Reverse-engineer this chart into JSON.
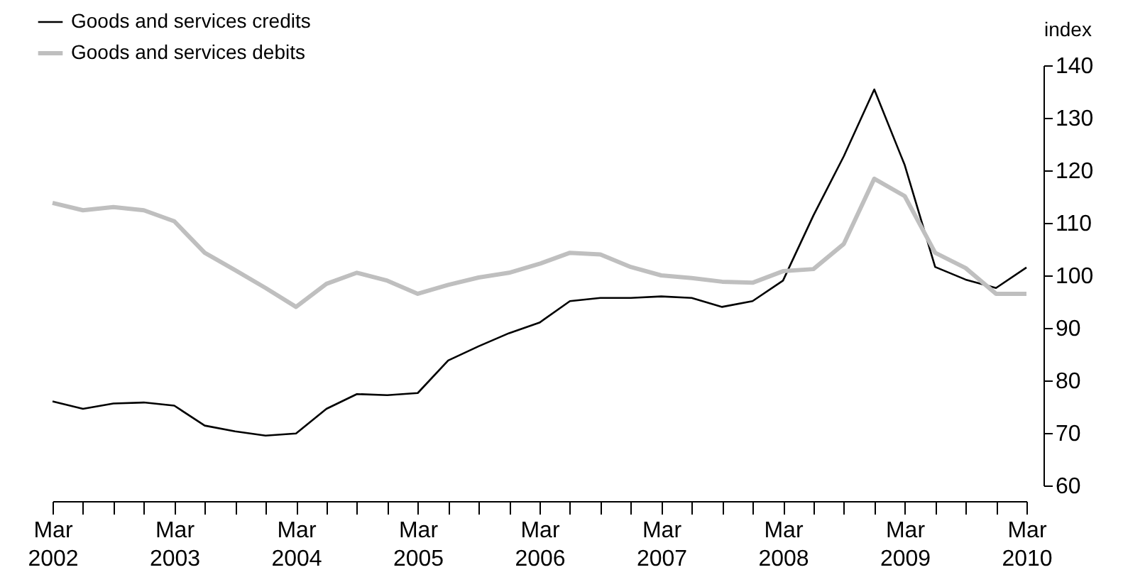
{
  "chart_data": {
    "type": "line",
    "categories": [
      "Mar 2002",
      null,
      null,
      null,
      "Mar 2003",
      null,
      null,
      null,
      "Mar 2004",
      null,
      null,
      null,
      "Mar 2005",
      null,
      null,
      null,
      "Mar 2006",
      null,
      null,
      null,
      "Mar 2007",
      null,
      null,
      null,
      "Mar 2008",
      null,
      null,
      null,
      "Mar 2009",
      null,
      null,
      null,
      "Mar 2010"
    ],
    "ylabel": "index",
    "ylim": [
      60,
      140
    ],
    "yticks": [
      60,
      70,
      80,
      90,
      100,
      110,
      120,
      130,
      140
    ],
    "series": [
      {
        "name": "Goods and services credits",
        "color": "#000000",
        "values": [
          76,
          74.6,
          75.6,
          75.8,
          75.2,
          71.4,
          70.3,
          69.5,
          69.9,
          74.6,
          77.4,
          77.2,
          77.6,
          83.8,
          86.5,
          89,
          91,
          95.1,
          95.7,
          95.7,
          96,
          95.7,
          94,
          95.1,
          99,
          111.4,
          122.7,
          135.4,
          121,
          101.6,
          99.2,
          97.6,
          101.5
        ]
      },
      {
        "name": "Goods and services debits",
        "color": "#bfbfbf",
        "values": [
          113.8,
          112.4,
          113,
          112.4,
          110.3,
          104.3,
          101,
          97.6,
          94,
          98.4,
          100.5,
          99,
          96.5,
          98.2,
          99.6,
          100.5,
          102.2,
          104.3,
          104,
          101.6,
          100,
          99.5,
          98.8,
          98.6,
          100.8,
          101.2,
          106,
          118.4,
          115.1,
          104.3,
          101.4,
          96.5,
          96.5
        ]
      }
    ],
    "legend": "top left",
    "grid": false
  }
}
